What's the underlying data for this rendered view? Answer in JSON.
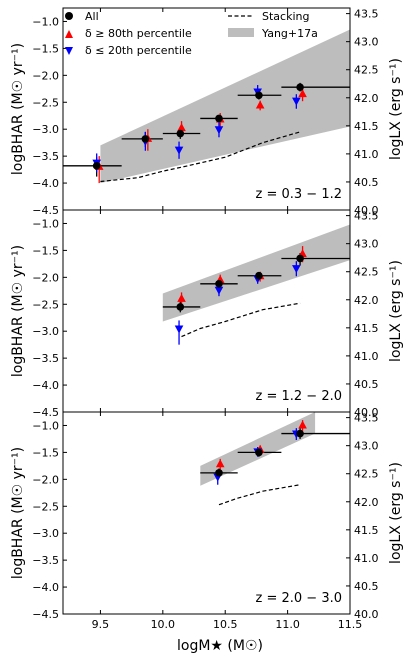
{
  "legend": {
    "all": "All",
    "high": "δ ≥ 80th percentile",
    "low": "δ ≤ 20th percentile",
    "stacking": "Stacking",
    "yang": "Yang+17a"
  },
  "colors": {
    "all": "#000000",
    "high": "#ff0000",
    "low": "#0000ff",
    "band": "#bdbdbd",
    "stack": "#000000"
  },
  "xlabel": "logM★ (M☉)",
  "ylabel_left": "logBHAR (M☉ yr⁻¹)",
  "ylabel_right": "logLX (erg s⁻¹)",
  "chart_data": [
    {
      "type": "scatter",
      "zlabel": "z = 0.3 − 1.2",
      "xlim": [
        9.2,
        11.5
      ],
      "ylim": [
        -4.5,
        -0.75
      ],
      "y2lim": [
        40.0,
        43.6
      ],
      "xticks": [
        9.5,
        10.0,
        10.5,
        11.0,
        11.5
      ],
      "yticks": [
        -4.5,
        -4.0,
        -3.5,
        -3.0,
        -2.5,
        -2.0,
        -1.5,
        -1.0
      ],
      "y2ticks": [
        40.0,
        40.5,
        41.0,
        41.5,
        42.0,
        42.5,
        43.0,
        43.5
      ],
      "all": [
        {
          "x": 9.47,
          "y": -3.68,
          "xlo": 9.2,
          "xhi": 9.67,
          "ylo": -3.88,
          "yhi": -3.52
        },
        {
          "x": 9.86,
          "y": -3.18,
          "xlo": 9.67,
          "xhi": 10.0,
          "ylo": -3.33,
          "yhi": -3.05
        },
        {
          "x": 10.14,
          "y": -3.08,
          "xlo": 10.0,
          "xhi": 10.3,
          "ylo": -3.18,
          "yhi": -2.98
        },
        {
          "x": 10.45,
          "y": -2.8,
          "xlo": 10.3,
          "xhi": 10.6,
          "ylo": -2.87,
          "yhi": -2.74
        },
        {
          "x": 10.77,
          "y": -2.37,
          "xlo": 10.6,
          "xhi": 10.95,
          "ylo": -2.45,
          "yhi": -2.3
        },
        {
          "x": 11.1,
          "y": -2.22,
          "xlo": 10.95,
          "xhi": 11.5,
          "ylo": -2.3,
          "yhi": -2.14
        }
      ],
      "high": [
        {
          "x": 9.49,
          "y": -3.7,
          "ylo": -4.0,
          "yhi": -3.5
        },
        {
          "x": 9.88,
          "y": -3.18,
          "ylo": -3.4,
          "yhi": -3.0
        },
        {
          "x": 10.15,
          "y": -2.98,
          "ylo": -3.1,
          "yhi": -2.85
        },
        {
          "x": 10.46,
          "y": -2.82,
          "ylo": -2.95,
          "yhi": -2.7
        },
        {
          "x": 10.78,
          "y": -2.56,
          "ylo": -2.65,
          "yhi": -2.47
        },
        {
          "x": 11.12,
          "y": -2.35,
          "ylo": -2.48,
          "yhi": -2.22
        }
      ],
      "low": [
        {
          "x": 9.47,
          "y": -3.62,
          "ylo": -3.8,
          "yhi": -3.45
        },
        {
          "x": 9.86,
          "y": -3.22,
          "ylo": -3.4,
          "yhi": -3.05
        },
        {
          "x": 10.13,
          "y": -3.38,
          "ylo": -3.55,
          "yhi": -3.23
        },
        {
          "x": 10.45,
          "y": -3.0,
          "ylo": -3.15,
          "yhi": -2.87
        },
        {
          "x": 10.76,
          "y": -2.3,
          "ylo": -2.42,
          "yhi": -2.18
        },
        {
          "x": 11.07,
          "y": -2.47,
          "ylo": -2.62,
          "yhi": -2.35
        }
      ],
      "stacking": {
        "x": [
          9.5,
          9.8,
          10.0,
          10.2,
          10.5,
          10.8,
          11.1
        ],
        "y": [
          -3.97,
          -3.9,
          -3.78,
          -3.68,
          -3.52,
          -3.25,
          -3.05
        ]
      },
      "band": {
        "x": [
          9.5,
          11.5
        ],
        "upper": [
          -3.3,
          -1.15
        ],
        "lower": [
          -4.0,
          -2.95
        ]
      }
    },
    {
      "type": "scatter",
      "zlabel": "z = 1.2 − 2.0",
      "xlim": [
        9.2,
        11.5
      ],
      "ylim": [
        -4.5,
        -0.75
      ],
      "y2lim": [
        40.0,
        43.6
      ],
      "xticks": [
        9.5,
        10.0,
        10.5,
        11.0,
        11.5
      ],
      "yticks": [
        -4.5,
        -4.0,
        -3.5,
        -3.0,
        -2.5,
        -2.0,
        -1.5,
        -1.0
      ],
      "y2ticks": [
        40.0,
        40.5,
        41.0,
        41.5,
        42.0,
        42.5,
        43.0,
        43.5
      ],
      "all": [
        {
          "x": 10.14,
          "y": -2.55,
          "xlo": 10.0,
          "xhi": 10.3,
          "ylo": -2.65,
          "yhi": -2.45
        },
        {
          "x": 10.45,
          "y": -2.12,
          "xlo": 10.3,
          "xhi": 10.6,
          "ylo": -2.2,
          "yhi": -2.05
        },
        {
          "x": 10.77,
          "y": -1.97,
          "xlo": 10.6,
          "xhi": 10.95,
          "ylo": -2.05,
          "yhi": -1.9
        },
        {
          "x": 11.1,
          "y": -1.65,
          "xlo": 10.95,
          "xhi": 11.5,
          "ylo": -1.78,
          "yhi": -1.55
        }
      ],
      "high": [
        {
          "x": 10.15,
          "y": -2.4,
          "ylo": -2.55,
          "yhi": -2.28
        },
        {
          "x": 10.46,
          "y": -2.05,
          "ylo": -2.15,
          "yhi": -1.95
        },
        {
          "x": 10.78,
          "y": -1.98,
          "ylo": -2.08,
          "yhi": -1.9
        },
        {
          "x": 11.12,
          "y": -1.57,
          "ylo": -1.72,
          "yhi": -1.42
        }
      ],
      "low": [
        {
          "x": 10.13,
          "y": -2.95,
          "ylo": -3.25,
          "yhi": -2.8
        },
        {
          "x": 10.45,
          "y": -2.23,
          "ylo": -2.35,
          "yhi": -2.12
        },
        {
          "x": 10.76,
          "y": -2.02,
          "ylo": -2.12,
          "yhi": -1.93
        },
        {
          "x": 11.07,
          "y": -1.83,
          "ylo": -1.98,
          "yhi": -1.7
        }
      ],
      "stacking": {
        "x": [
          10.15,
          10.3,
          10.5,
          10.8,
          11.1
        ],
        "y": [
          -3.1,
          -2.95,
          -2.82,
          -2.6,
          -2.48
        ]
      },
      "band": {
        "x": [
          10.0,
          11.5
        ],
        "upper": [
          -2.3,
          -1.02
        ],
        "lower": [
          -2.82,
          -1.68
        ]
      }
    },
    {
      "type": "scatter",
      "zlabel": "z = 2.0 − 3.0",
      "xlim": [
        9.2,
        11.5
      ],
      "ylim": [
        -4.5,
        -0.75
      ],
      "y2lim": [
        40.0,
        43.6
      ],
      "xticks": [
        9.5,
        10.0,
        10.5,
        11.0,
        11.5
      ],
      "yticks": [
        -4.5,
        -4.0,
        -3.5,
        -3.0,
        -2.5,
        -2.0,
        -1.5,
        -1.0
      ],
      "y2ticks": [
        40.0,
        40.5,
        41.0,
        41.5,
        42.0,
        42.5,
        43.0,
        43.5
      ],
      "all": [
        {
          "x": 10.45,
          "y": -1.88,
          "xlo": 10.3,
          "xhi": 10.6,
          "ylo": -1.97,
          "yhi": -1.8
        },
        {
          "x": 10.77,
          "y": -1.5,
          "xlo": 10.6,
          "xhi": 10.95,
          "ylo": -1.58,
          "yhi": -1.42
        },
        {
          "x": 11.1,
          "y": -1.15,
          "xlo": 10.95,
          "xhi": 11.5,
          "ylo": -1.25,
          "yhi": -1.05
        }
      ],
      "high": [
        {
          "x": 10.46,
          "y": -1.72,
          "ylo": -1.82,
          "yhi": -1.62
        },
        {
          "x": 10.78,
          "y": -1.45,
          "ylo": -1.53,
          "yhi": -1.37
        },
        {
          "x": 11.12,
          "y": -1.0,
          "ylo": -1.1,
          "yhi": -0.9
        }
      ],
      "low": [
        {
          "x": 10.44,
          "y": -1.95,
          "ylo": -2.1,
          "yhi": -1.82
        },
        {
          "x": 10.76,
          "y": -1.48,
          "ylo": -1.58,
          "yhi": -1.4
        },
        {
          "x": 11.07,
          "y": -1.15,
          "ylo": -1.27,
          "yhi": -1.05
        }
      ],
      "stacking": {
        "x": [
          10.45,
          10.6,
          10.8,
          11.1
        ],
        "y": [
          -2.47,
          -2.35,
          -2.22,
          -2.1
        ]
      },
      "band": {
        "x": [
          10.3,
          11.22
        ],
        "upper": [
          -1.75,
          -0.75
        ],
        "lower": [
          -2.12,
          -1.15
        ]
      }
    }
  ]
}
